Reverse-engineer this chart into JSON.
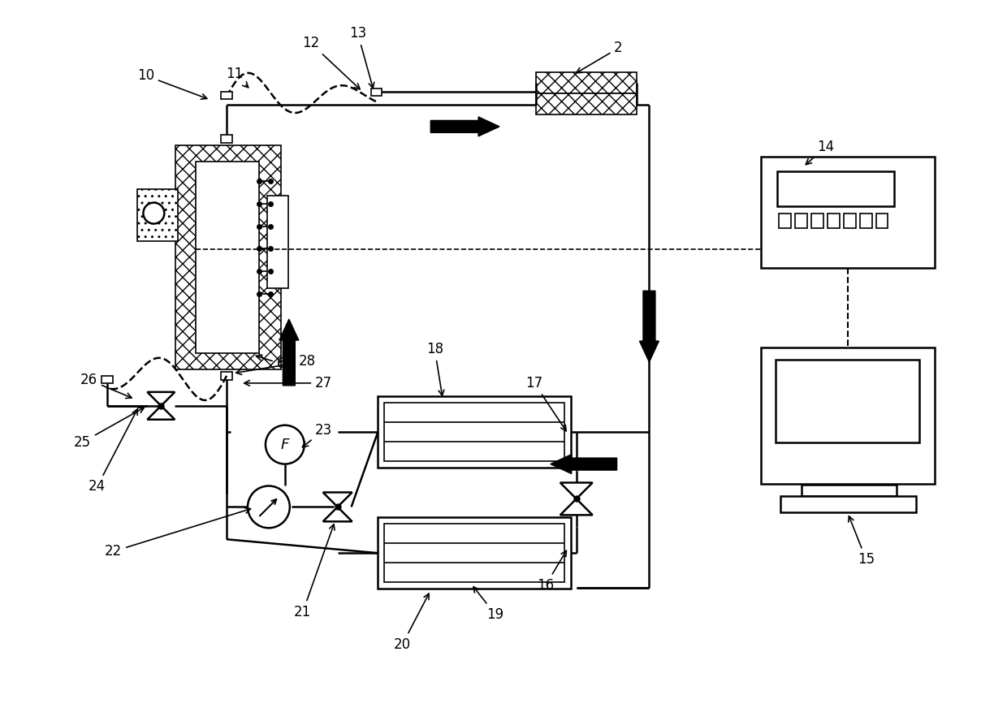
{
  "bg": "#ffffff",
  "lc": "#000000",
  "lw_main": 1.8,
  "lw_thin": 1.2,
  "label_fs": 12
}
